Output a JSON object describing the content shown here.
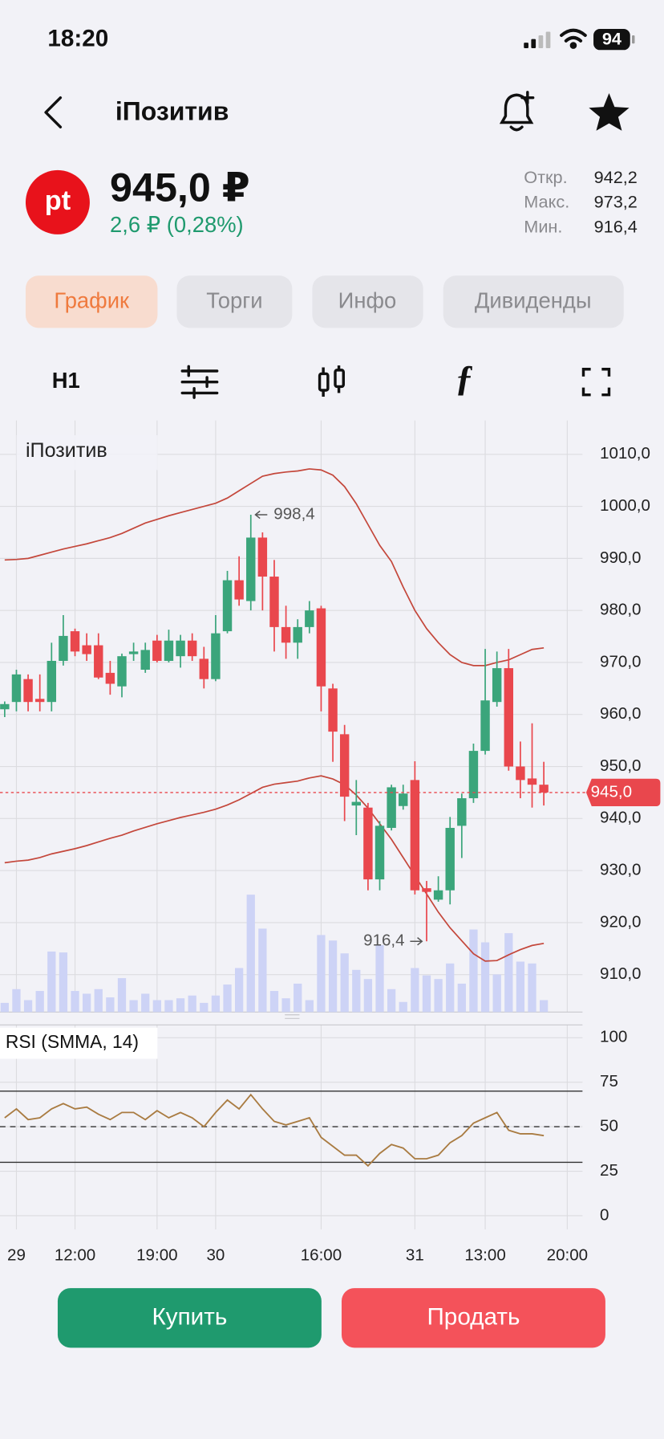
{
  "status_bar": {
    "time": "18:20",
    "battery": "94"
  },
  "header": {
    "title": "iПозитив"
  },
  "quote": {
    "logo": "pt",
    "price": "945,0 ₽",
    "change": "2,6 ₽ (0,28%)",
    "stats": [
      {
        "label": "Откр.",
        "value": "942,2"
      },
      {
        "label": "Макс.",
        "value": "973,2"
      },
      {
        "label": "Мин.",
        "value": "916,4"
      }
    ]
  },
  "tabs": [
    "График",
    "Торги",
    "Инфо",
    "Дивиденды"
  ],
  "toolbar": {
    "interval": "H1"
  },
  "chart_data": [
    {
      "type": "candlestick",
      "title": "iПозитив",
      "up_color": "#3ba57b",
      "down_color": "#e9474d",
      "volume_color": "#cdd3f6",
      "grid": true,
      "open": [
        961,
        962.4,
        966.8,
        963,
        962.4,
        970.3,
        976,
        973.3,
        973.3,
        968,
        965.4,
        971.6,
        968.6,
        974.2,
        970.3,
        971.2,
        974.2,
        970.7,
        966.8,
        976,
        985.8,
        981.8,
        994,
        986.5,
        976.8,
        973.8,
        976.8,
        980.4,
        965,
        956.2,
        942.5,
        942.1,
        928.3,
        938.2,
        942.4,
        947.4,
        926.6,
        924.4,
        926.2,
        938.6,
        943.9,
        953,
        962.4,
        968.9,
        950,
        947.7,
        946.5
      ],
      "high": [
        962.5,
        968.6,
        967.7,
        967.7,
        973.8,
        979.1,
        976.5,
        975.6,
        975.6,
        970.3,
        971.7,
        973.8,
        973.8,
        975.3,
        976.3,
        975.3,
        975.6,
        973,
        979.1,
        987.6,
        990.4,
        998.4,
        995,
        989.7,
        980.9,
        978.3,
        981.8,
        980.9,
        965.9,
        958,
        947.4,
        943,
        939.5,
        946.5,
        946.5,
        951,
        928,
        928.9,
        940.3,
        944.8,
        954.4,
        972.6,
        972.1,
        972.6,
        954.8,
        958.3,
        950.9
      ],
      "low": [
        959.5,
        960.6,
        960.6,
        960.6,
        960.6,
        969.4,
        971.2,
        970.3,
        966.8,
        963.8,
        963.3,
        970.3,
        968,
        970,
        970,
        969,
        970.3,
        965,
        966.4,
        975.6,
        980.9,
        980,
        980,
        972.1,
        970.7,
        970.7,
        975.6,
        960.6,
        950.9,
        939.5,
        936.8,
        926.2,
        926.2,
        937.7,
        941.7,
        925.4,
        916.4,
        924,
        923.5,
        932.4,
        943,
        952.3,
        961.5,
        949.2,
        943.9,
        942.1,
        942.5
      ],
      "close": [
        962,
        967.7,
        962.4,
        962.4,
        970.3,
        975.1,
        972.1,
        971.6,
        967.1,
        965.9,
        971.2,
        972.1,
        972.4,
        970.3,
        974.2,
        974.2,
        971.2,
        966.8,
        975.6,
        985.8,
        982.1,
        994,
        986.5,
        976.8,
        973.8,
        976.8,
        980,
        965.4,
        956.7,
        944.2,
        943.2,
        928.3,
        938.6,
        946,
        944.8,
        926.2,
        925.9,
        926.2,
        938.2,
        943.9,
        953,
        962.7,
        968.9,
        950,
        947.4,
        946.5,
        945
      ],
      "volume": [
        10,
        25,
        13,
        23,
        66,
        65,
        23,
        20,
        25,
        16,
        37,
        13,
        20,
        13,
        13,
        15,
        18,
        10,
        18,
        30,
        48,
        128,
        91,
        23,
        15,
        31,
        13,
        84,
        78,
        64,
        46,
        36,
        73,
        25,
        11,
        48,
        40,
        36,
        53,
        31,
        90,
        76,
        41,
        86,
        55,
        53,
        13
      ],
      "bands": [
        {
          "color": "#c4473b",
          "values": [
            989.7,
            989.8,
            990,
            990.6,
            991.2,
            991.8,
            992.3,
            992.8,
            993.4,
            994,
            994.8,
            995.8,
            996.8,
            997.5,
            998.2,
            998.8,
            999.4,
            1000,
            1000.6,
            1001.6,
            1003,
            1004.4,
            1005.8,
            1006.3,
            1006.6,
            1006.8,
            1007.2,
            1007,
            1006,
            1003.8,
            1000.5,
            996.5,
            992.5,
            989.4,
            984.5,
            980,
            976.5,
            973.8,
            971.5,
            970,
            969.4,
            969.4,
            970,
            970.5,
            971.5,
            972.5,
            972.8
          ]
        },
        {
          "color": "#c4473b",
          "values": [
            931.5,
            931.8,
            932,
            932.5,
            933.2,
            933.7,
            934.2,
            934.8,
            935.5,
            936.2,
            936.8,
            937.6,
            938.3,
            939,
            939.6,
            940.2,
            940.7,
            941.2,
            941.8,
            942.6,
            943.6,
            944.8,
            946,
            946.6,
            946.9,
            947.2,
            947.8,
            948.2,
            947.6,
            946.5,
            944.5,
            942,
            939,
            936,
            932.5,
            929,
            925.5,
            922,
            919,
            916.5,
            914,
            912.6,
            912.7,
            913.8,
            914.8,
            915.6,
            916
          ]
        }
      ],
      "annotations": [
        {
          "value": 998.4,
          "label": "998,4"
        },
        {
          "value": 916.4,
          "label": "916,4"
        }
      ],
      "last_price": {
        "value": 945,
        "label": "945,0",
        "color": "#e9474d"
      },
      "xlim": [
        -0.4,
        49.3
      ],
      "ylim": [
        902.8,
        1016.5
      ],
      "yticks": [
        {
          "value": 910,
          "label": "910,0"
        },
        {
          "value": 920,
          "label": "920,0"
        },
        {
          "value": 930,
          "label": "930,0"
        },
        {
          "value": 940,
          "label": "940,0"
        },
        {
          "value": 950,
          "label": "950,0"
        },
        {
          "value": 960,
          "label": "960,0"
        },
        {
          "value": 970,
          "label": "970,0"
        },
        {
          "value": 980,
          "label": "980,0"
        },
        {
          "value": 990,
          "label": "990,0"
        },
        {
          "value": 1000,
          "label": "1000,0"
        },
        {
          "value": 1010,
          "label": "1010,0"
        }
      ]
    },
    {
      "type": "line",
      "title": "RSI (SMMA, 14)",
      "color": "#a97b41",
      "grid": true,
      "values": [
        55,
        60,
        54,
        55,
        60,
        63,
        60,
        61,
        57,
        54,
        58,
        58,
        54,
        59,
        55,
        58,
        55,
        50,
        58,
        65,
        60,
        68,
        60,
        53,
        51,
        53,
        55,
        44,
        39,
        34,
        34,
        28,
        35,
        40,
        38,
        32,
        32,
        34,
        41,
        45,
        52,
        55,
        58,
        48,
        46,
        46,
        45
      ],
      "levels": [
        {
          "value": 70,
          "style": "solid"
        },
        {
          "value": 50,
          "style": "dashed"
        },
        {
          "value": 30,
          "style": "solid"
        }
      ],
      "xlim": [
        -0.4,
        49.3
      ],
      "ylim": [
        -7.7,
        107.2
      ],
      "yticks": [
        0,
        25,
        50,
        75,
        100
      ],
      "xticks": [
        {
          "value": 1,
          "label": "29"
        },
        {
          "value": 6,
          "label": "12:00"
        },
        {
          "value": 13,
          "label": "19:00"
        },
        {
          "value": 18,
          "label": "30"
        },
        {
          "value": 27,
          "label": "16:00"
        },
        {
          "value": 35,
          "label": "31"
        },
        {
          "value": 41,
          "label": "13:00"
        },
        {
          "value": 48,
          "label": "20:00"
        }
      ]
    }
  ],
  "buttons": {
    "buy": "Купить",
    "sell": "Продать"
  }
}
